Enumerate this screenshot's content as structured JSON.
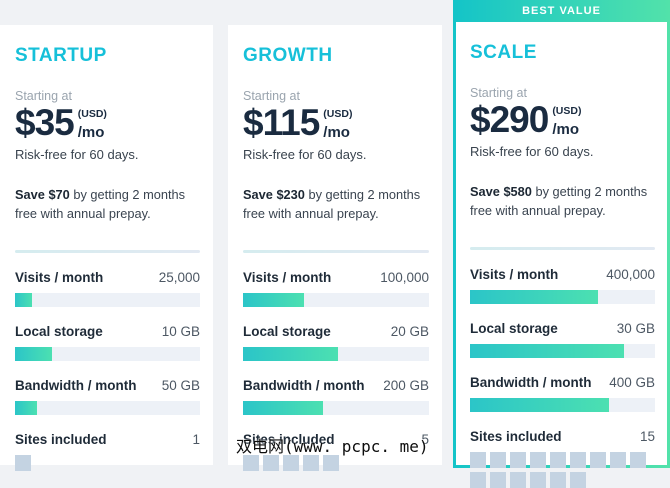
{
  "banner": {
    "best_value_label": "BEST VALUE"
  },
  "watermark": "双电网(www. pcpc. me)",
  "colors": {
    "accent_cyan": "#16c0d9",
    "price_navy": "#1a2b40",
    "bar_gradient_start": "#2bc5c8",
    "bar_gradient_end": "#4ce0b1",
    "banner_gradient_start": "#14c4c8",
    "banner_gradient_end": "#52e2aa",
    "square_fill": "#c4d3e2",
    "bar_track": "#edf1f7"
  },
  "plans": [
    {
      "name": "STARTUP",
      "starting_at": "Starting at",
      "price": "$35",
      "currency_note": "(USD)",
      "per": "/mo",
      "risk_free": "Risk-free for 60 days.",
      "save_bold": "Save $70",
      "save_rest": " by getting 2 months free with annual prepay.",
      "features": [
        {
          "label": "Visits / month",
          "value": "25,000",
          "type": "bar",
          "percent": 9
        },
        {
          "label": "Local storage",
          "value": "10 GB",
          "type": "bar",
          "percent": 20
        },
        {
          "label": "Bandwidth / month",
          "value": "50 GB",
          "type": "bar",
          "percent": 12
        },
        {
          "label": "Sites included",
          "value": "1",
          "type": "squares",
          "count": 1
        }
      ]
    },
    {
      "name": "GROWTH",
      "starting_at": "Starting at",
      "price": "$115",
      "currency_note": "(USD)",
      "per": "/mo",
      "risk_free": "Risk-free for 60 days.",
      "save_bold": "Save $230",
      "save_rest": " by getting 2 months free with annual prepay.",
      "features": [
        {
          "label": "Visits / month",
          "value": "100,000",
          "type": "bar",
          "percent": 33
        },
        {
          "label": "Local storage",
          "value": "20 GB",
          "type": "bar",
          "percent": 51
        },
        {
          "label": "Bandwidth / month",
          "value": "200 GB",
          "type": "bar",
          "percent": 43
        },
        {
          "label": "Sites included",
          "value": "5",
          "type": "squares",
          "count": 5
        }
      ]
    },
    {
      "name": "SCALE",
      "best_value": true,
      "starting_at": "Starting at",
      "price": "$290",
      "currency_note": "(USD)",
      "per": "/mo",
      "risk_free": "Risk-free for 60 days.",
      "save_bold": "Save $580",
      "save_rest": " by getting 2 months free with annual prepay.",
      "features": [
        {
          "label": "Visits / month",
          "value": "400,000",
          "type": "bar",
          "percent": 69
        },
        {
          "label": "Local storage",
          "value": "30 GB",
          "type": "bar",
          "percent": 83
        },
        {
          "label": "Bandwidth / month",
          "value": "400 GB",
          "type": "bar",
          "percent": 75
        },
        {
          "label": "Sites included",
          "value": "15",
          "type": "squares",
          "count": 15
        }
      ]
    }
  ]
}
